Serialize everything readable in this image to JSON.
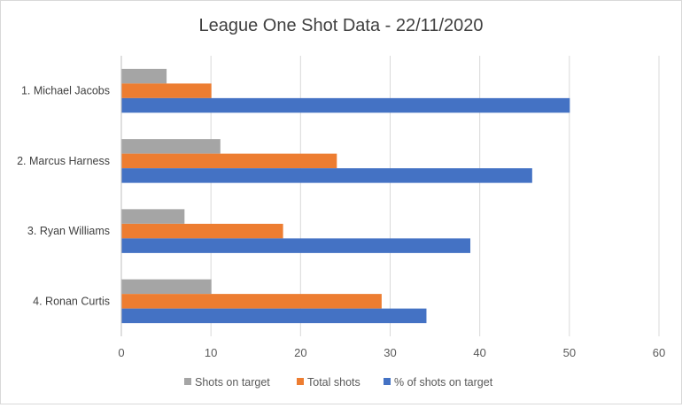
{
  "chart_data": {
    "type": "bar",
    "orientation": "horizontal",
    "title": "League One Shot Data - 22/11/2020",
    "categories": [
      "1. Michael Jacobs",
      "2. Marcus Harness",
      "3. Ryan Williams",
      "4. Ronan Curtis"
    ],
    "series": [
      {
        "name": "Shots on target",
        "color": "#a5a5a5",
        "values": [
          5,
          11,
          7,
          10
        ]
      },
      {
        "name": "Total shots",
        "color": "#ed7d31",
        "values": [
          10,
          24,
          18,
          29
        ]
      },
      {
        "name": "% of shots on target",
        "color": "#4472c4",
        "values": [
          50,
          45.8,
          38.9,
          34
        ]
      }
    ],
    "xlim": [
      0,
      60
    ],
    "xticks": [
      "0",
      "10",
      "20",
      "30",
      "40",
      "50",
      "60"
    ],
    "grid": true,
    "legend": "bottom"
  }
}
